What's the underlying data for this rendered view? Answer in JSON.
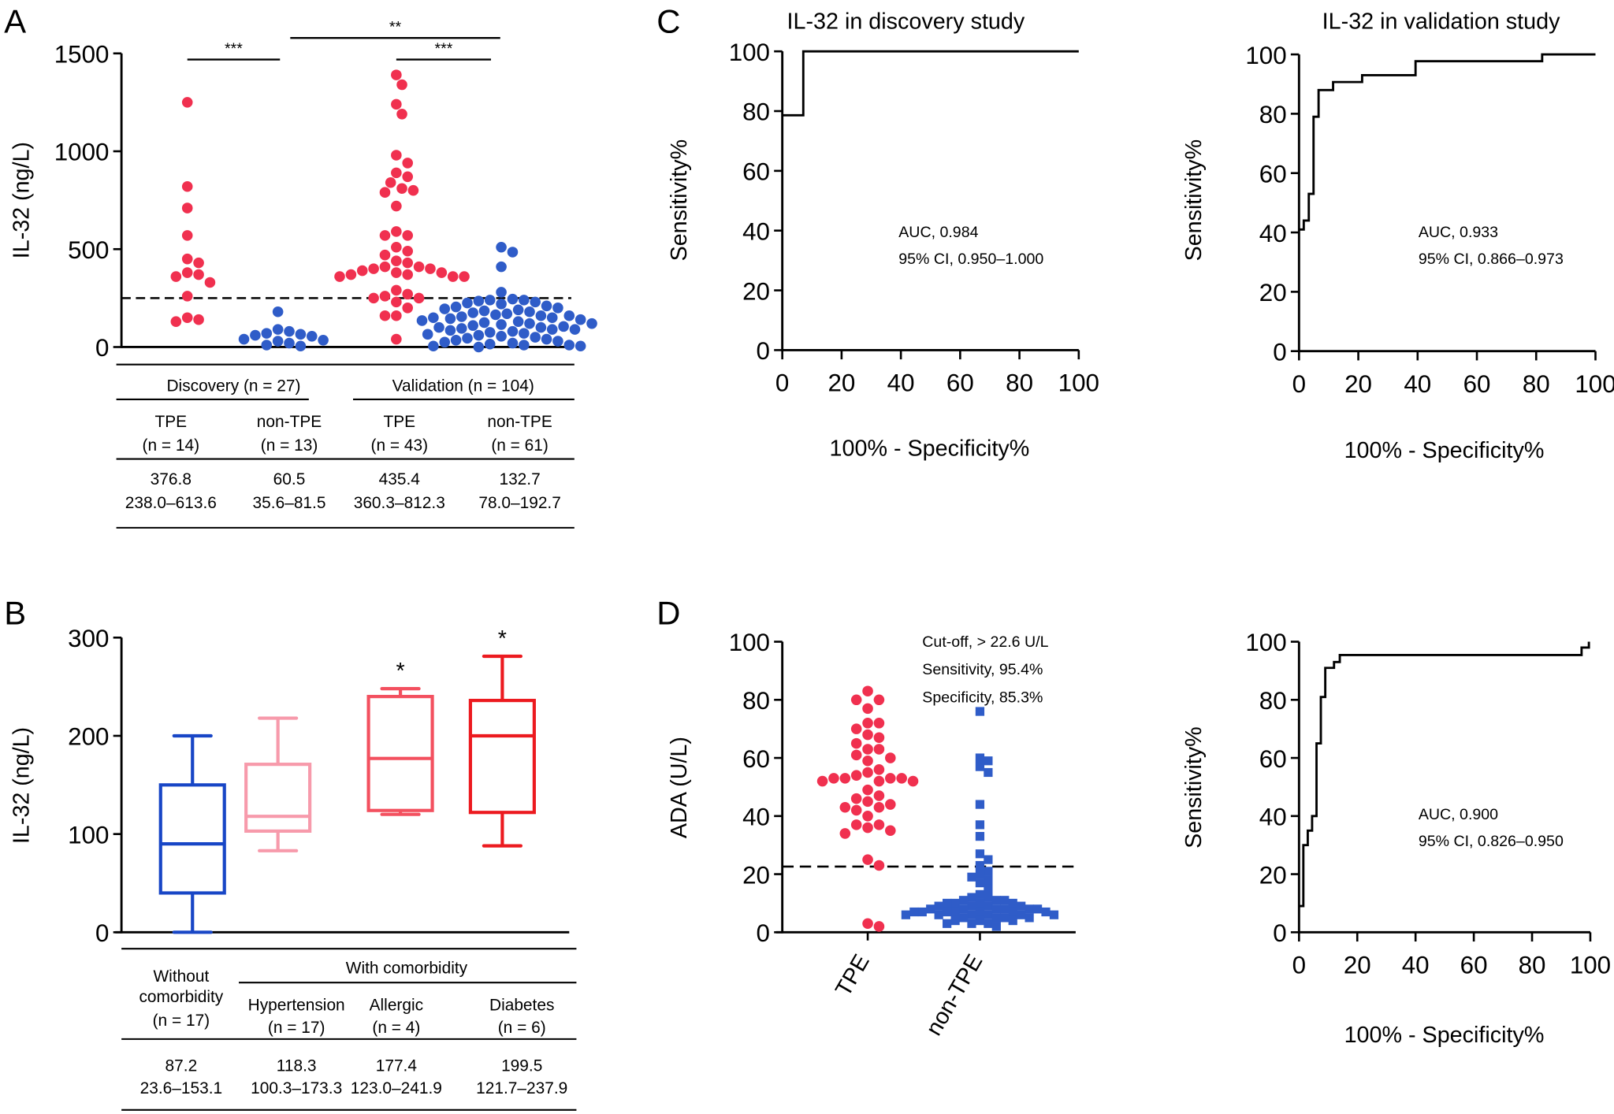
{
  "panels": {
    "a": "A",
    "b": "B",
    "c": "C",
    "d": "D"
  },
  "table_a": {
    "groups": [
      "Discovery (n = 27)",
      "Validation (n = 104)"
    ],
    "columns": [
      {
        "name": "TPE",
        "n": "(n = 14)",
        "median": "376.8",
        "iqr": "238.0–613.6"
      },
      {
        "name": "non-TPE",
        "n": "(n = 13)",
        "median": "60.5",
        "iqr": "35.6–81.5"
      },
      {
        "name": "TPE",
        "n": "(n = 43)",
        "median": "435.4",
        "iqr": "360.3–812.3"
      },
      {
        "name": "non-TPE",
        "n": "(n = 61)",
        "median": "132.7",
        "iqr": "78.0–192.7"
      }
    ]
  },
  "table_b": {
    "group": "With comorbidity",
    "without": [
      "Without",
      "comorbidity",
      "(n = 17)"
    ],
    "columns": [
      {
        "name": "Hypertension",
        "n": "(n = 17)"
      },
      {
        "name": "Allergic",
        "n": "(n = 4)"
      },
      {
        "name": "Diabetes",
        "n": "(n = 6)"
      }
    ],
    "values": [
      {
        "median": "87.2",
        "iqr": "23.6–153.1"
      },
      {
        "median": "118.3",
        "iqr": "100.3–173.3"
      },
      {
        "median": "177.4",
        "iqr": "123.0–241.9"
      },
      {
        "median": "199.5",
        "iqr": "121.7–237.9"
      }
    ]
  },
  "chart_data": [
    {
      "panel": "A",
      "type": "scatter",
      "ylabel": "IL-32 (ng/L)",
      "ylim": [
        0,
        1500
      ],
      "yticks": [
        "0",
        "500",
        "1000",
        "1500"
      ],
      "cutoff_line": 250,
      "colors": [
        "#f0304f",
        "#2f5cc8",
        "#f0304f",
        "#2f5cc8"
      ],
      "significance": [
        {
          "from": 0,
          "to": 1,
          "label": "***"
        },
        {
          "from": 1,
          "to": 3,
          "label": "**"
        },
        {
          "from": 2,
          "to": 3,
          "label": "***"
        }
      ],
      "series": [
        {
          "values": [
            1250,
            820,
            710,
            570,
            450,
            430,
            380,
            370,
            360,
            330,
            260,
            150,
            140,
            130
          ]
        },
        {
          "values": [
            180,
            90,
            80,
            70,
            65,
            60,
            55,
            40,
            35,
            30,
            20,
            10,
            5
          ]
        },
        {
          "values": [
            1390,
            1340,
            1240,
            1190,
            980,
            940,
            890,
            870,
            840,
            810,
            800,
            790,
            720,
            590,
            570,
            570,
            510,
            490,
            470,
            440,
            430,
            410,
            410,
            400,
            400,
            390,
            380,
            380,
            370,
            370,
            360,
            360,
            360,
            290,
            270,
            260,
            250,
            250,
            230,
            200,
            160,
            160,
            40
          ]
        },
        {
          "values": [
            510,
            485,
            410,
            280,
            245,
            240,
            240,
            235,
            230,
            225,
            220,
            210,
            205,
            200,
            195,
            190,
            185,
            180,
            175,
            170,
            165,
            160,
            160,
            155,
            150,
            150,
            145,
            140,
            135,
            130,
            125,
            120,
            120,
            115,
            110,
            105,
            100,
            100,
            95,
            90,
            90,
            85,
            80,
            75,
            70,
            65,
            60,
            55,
            50,
            45,
            40,
            35,
            30,
            25,
            20,
            15,
            10,
            10,
            5,
            5,
            0
          ]
        }
      ]
    },
    {
      "panel": "B",
      "type": "box",
      "ylabel": "IL-32 (ng/L)",
      "ylim": [
        0,
        300
      ],
      "yticks": [
        "0",
        "100",
        "200",
        "300"
      ],
      "boxes": [
        {
          "min": 0,
          "q1": 40,
          "median": 90,
          "q3": 150,
          "max": 200,
          "color": "#1846c6",
          "sig": ""
        },
        {
          "min": 83,
          "q1": 103,
          "median": 118,
          "q3": 171,
          "max": 218,
          "color": "#f79aab",
          "sig": ""
        },
        {
          "min": 120,
          "q1": 124,
          "median": 177,
          "q3": 240,
          "max": 248,
          "color": "#f3505f",
          "sig": "*"
        },
        {
          "min": 88,
          "q1": 122,
          "median": 200,
          "q3": 236,
          "max": 281,
          "color": "#ec1a1f",
          "sig": "*"
        }
      ]
    },
    {
      "panel": "C",
      "type": "line",
      "title": "IL-32 in discovery study",
      "xlabel": "100% - Specificity%",
      "ylabel": "Sensitivity%",
      "xlim": [
        0,
        100
      ],
      "ylim": [
        0,
        100
      ],
      "ticks": [
        "0",
        "20",
        "40",
        "60",
        "80",
        "100"
      ],
      "annotations": [
        "AUC, 0.984",
        "95% CI, 0.950–1.000"
      ],
      "x": [
        0,
        7.1,
        7.1,
        100
      ],
      "y": [
        78.6,
        78.6,
        100,
        100
      ]
    },
    {
      "panel": "C",
      "type": "line",
      "title": "IL-32 in validation study",
      "xlabel": "100% - Specificity%",
      "ylabel": "Sensitivity%",
      "xlim": [
        0,
        100
      ],
      "ylim": [
        0,
        100
      ],
      "ticks": [
        "0",
        "20",
        "40",
        "60",
        "80",
        "100"
      ],
      "annotations": [
        "AUC, 0.933",
        "95% CI, 0.866–0.973"
      ],
      "x": [
        0,
        1.6,
        1.6,
        3.3,
        3.3,
        4.9,
        4.9,
        6.6,
        6.6,
        11.5,
        11.5,
        21.3,
        21.3,
        39.3,
        39.3,
        82,
        82,
        100
      ],
      "y": [
        41,
        41,
        44,
        44,
        53,
        53,
        79,
        79,
        88,
        88,
        90.7,
        90.7,
        93,
        93,
        97.7,
        97.7,
        100,
        100
      ]
    },
    {
      "panel": "D",
      "type": "scatter",
      "ylabel": "ADA (U/L)",
      "ylim": [
        0,
        100
      ],
      "yticks": [
        "0",
        "20",
        "40",
        "60",
        "80",
        "100"
      ],
      "categories": [
        "TPE",
        "non-TPE"
      ],
      "cutoff_line": 22.6,
      "colors": [
        "#f0304f",
        "#2f5cc8"
      ],
      "markers": [
        "circle",
        "square"
      ],
      "annotations": [
        "Cut-off, > 22.6 U/L",
        "Sensitivity, 95.4%",
        "Specificity, 85.3%"
      ],
      "series": [
        {
          "values": [
            83,
            80,
            80,
            77,
            72,
            72,
            70,
            68,
            67,
            65,
            63,
            63,
            61,
            60,
            59,
            56,
            55,
            54,
            53,
            53,
            53,
            53,
            52,
            52,
            52,
            49,
            47,
            46,
            45,
            44,
            43,
            43,
            42,
            40,
            37,
            37,
            36,
            35,
            34,
            25,
            23,
            3,
            2
          ]
        },
        {
          "values": [
            76,
            60,
            59,
            57,
            55,
            44,
            37,
            33,
            27,
            25,
            23,
            21,
            20,
            19,
            18,
            17,
            15,
            13,
            12,
            12,
            11,
            11,
            11,
            10,
            10,
            10,
            10,
            9,
            9,
            9,
            9,
            8,
            8,
            8,
            8,
            8,
            8,
            7,
            7,
            7,
            7,
            7,
            7,
            7,
            6,
            6,
            6,
            6,
            6,
            6,
            5,
            5,
            5,
            5,
            4,
            4,
            4,
            3,
            3,
            3,
            2
          ]
        }
      ]
    },
    {
      "panel": "D",
      "type": "line",
      "xlabel": "100% - Specificity%",
      "ylabel": "Sensitivity%",
      "xlim": [
        0,
        100
      ],
      "ylim": [
        0,
        100
      ],
      "ticks": [
        "0",
        "20",
        "40",
        "60",
        "80",
        "100"
      ],
      "annotations": [
        "AUC, 0.900",
        "95% CI, 0.826–0.950"
      ],
      "x": [
        0,
        1.5,
        1.5,
        3,
        3,
        4.5,
        4.5,
        6,
        6,
        7.5,
        7.5,
        9,
        9,
        12,
        12,
        14,
        14,
        97,
        97,
        99.5,
        99.5
      ],
      "y": [
        9,
        9,
        30,
        30,
        35,
        35,
        40,
        40,
        65,
        65,
        81,
        81,
        91,
        91,
        93,
        93,
        95.4,
        95.4,
        98,
        98,
        100
      ]
    }
  ]
}
